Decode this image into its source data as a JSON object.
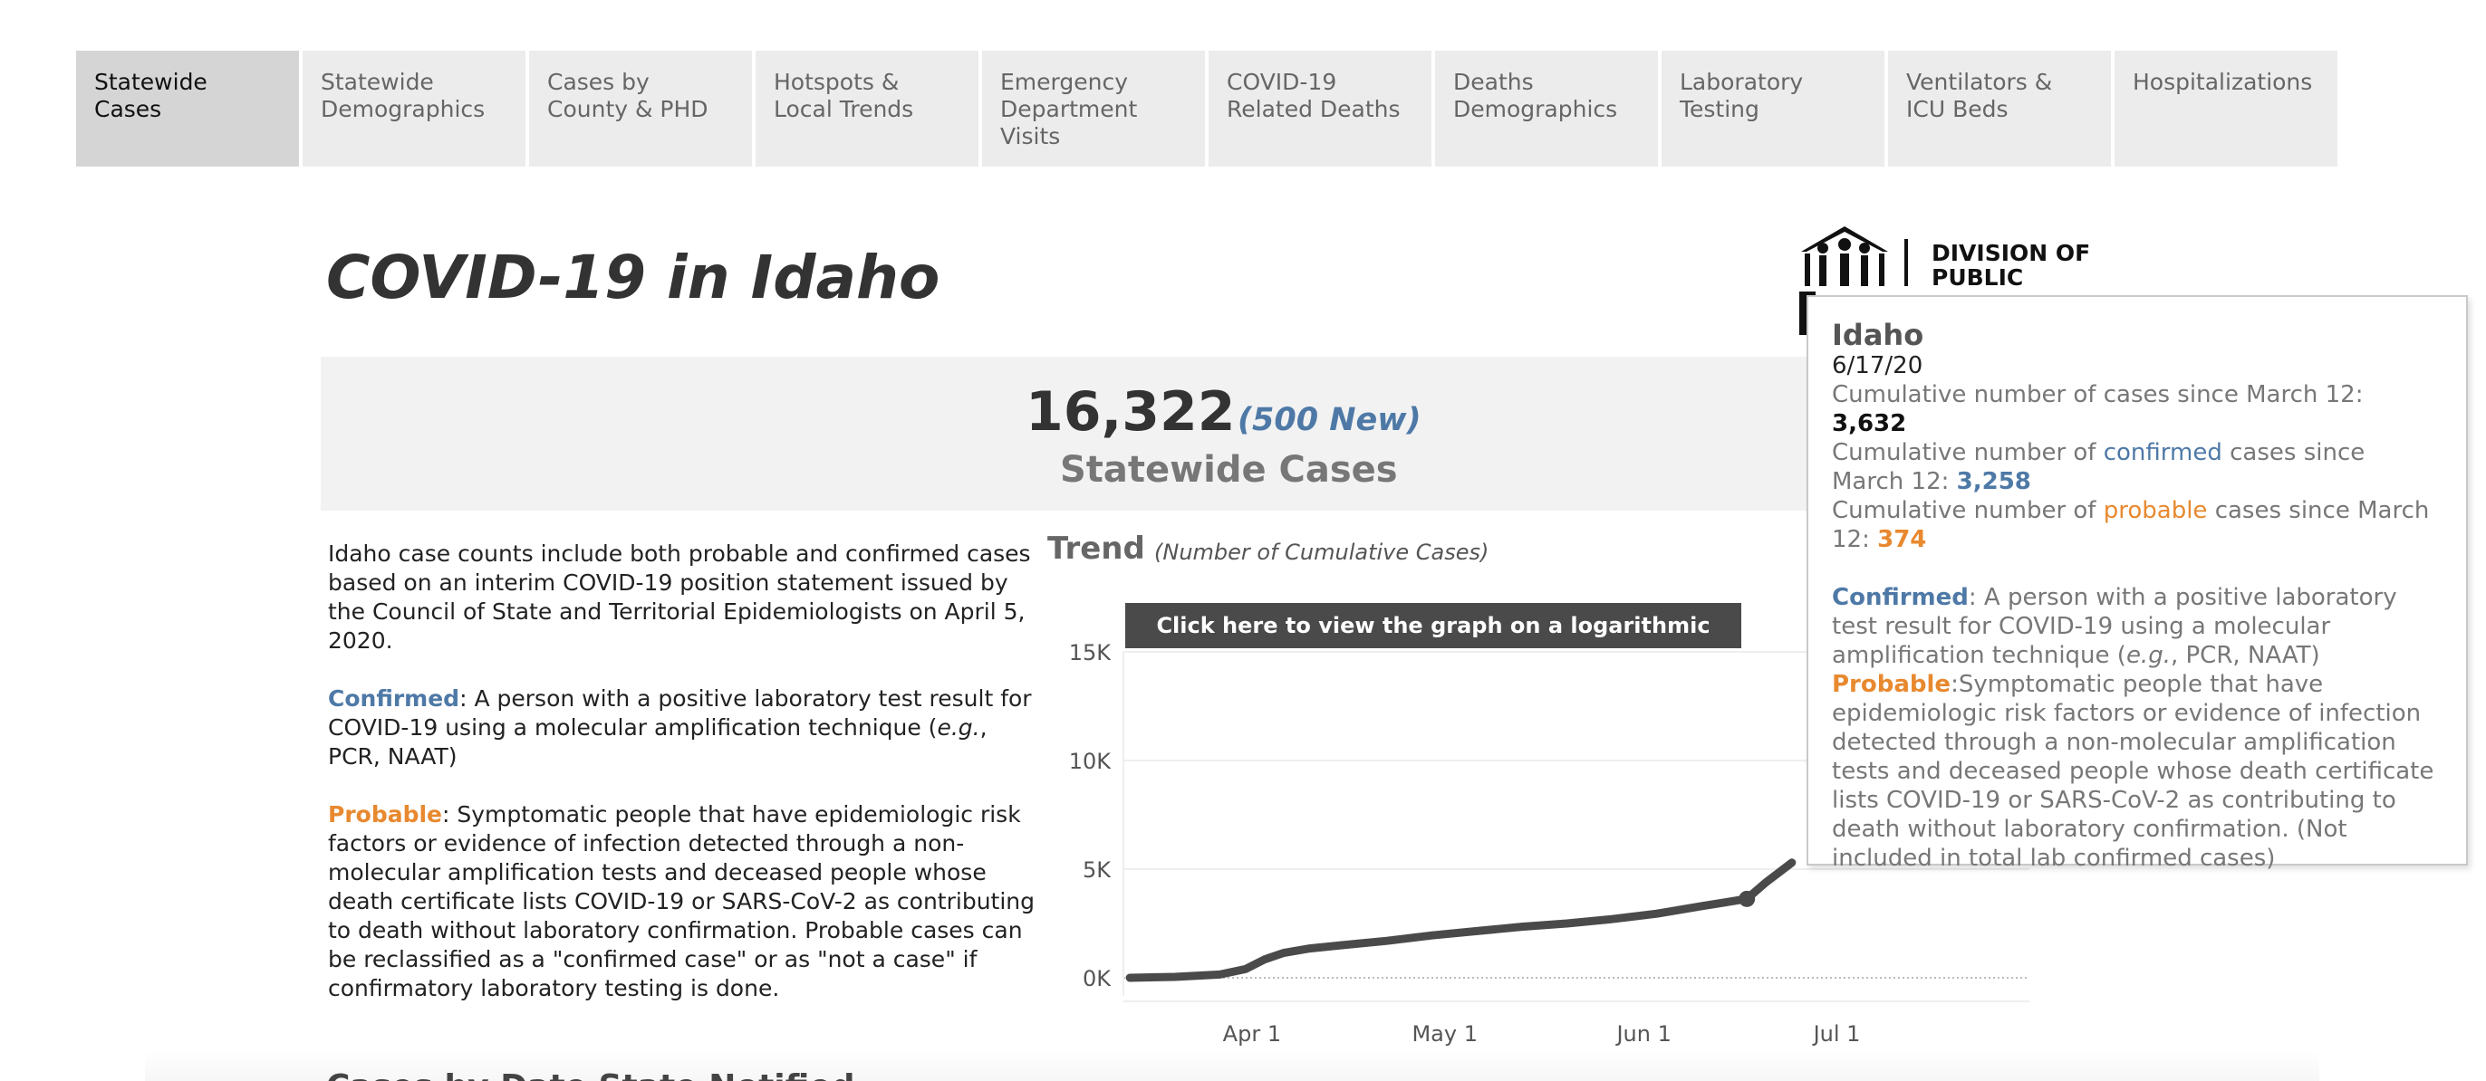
{
  "tabs": [
    {
      "label": "Statewide Cases",
      "active": true
    },
    {
      "label": "Statewide Demographics"
    },
    {
      "label": "Cases by County & PHD"
    },
    {
      "label": "Hotspots & Local Trends"
    },
    {
      "label": "Emergency Department Visits"
    },
    {
      "label": "COVID-19 Related Deaths"
    },
    {
      "label": "Deaths Demographics"
    },
    {
      "label": "Laboratory Testing"
    },
    {
      "label": "Ventilators & ICU Beds"
    },
    {
      "label": "Hospitalizations"
    }
  ],
  "page_title": "COVID-19 in Idaho",
  "logo": {
    "line1": "DIVISION OF",
    "line2": "PUBLIC"
  },
  "headline": {
    "total": "16,322",
    "new": "(500 New)",
    "label": "Statewide Cases"
  },
  "left_text": {
    "intro": "Idaho case counts include both probable and confirmed cases based on an interim COVID-19 position statement issued by the Council of State and Territorial Epidemiologists on April 5, 2020.",
    "confirmed_label": "Confirmed",
    "confirmed_text": ": A person with a positive laboratory test result for COVID-19 using a molecular amplification technique (",
    "confirmed_eg": "e.g.",
    "confirmed_tail": ", PCR, NAAT)",
    "probable_label": "Probable",
    "probable_text": ": Symptomatic people that have epidemiologic risk factors or evidence of infection detected through a non-molecular amplification tests and deceased people whose death certificate lists  COVID-19 or SARS-CoV-2 as contributing to death without laboratory confirmation. Probable cases can be reclassified as a \"confirmed case\" or as \"not a case\" if confirmatory laboratory testing is done."
  },
  "trend": {
    "title": "Trend",
    "subtitle": "(Number of Cumulative Cases)",
    "log_button": "Click here to view the graph on a logarithmic scale"
  },
  "tooltip": {
    "title": "Idaho",
    "date": "6/17/20",
    "line1_prefix": "Cumulative number of cases since March 12: ",
    "line1_value": "3,632",
    "line2_prefix": "Cumulative number of ",
    "line2_word": "confirmed",
    "line2_suffix": " cases since March 12: ",
    "line2_value": "3,258",
    "line3_prefix": "Cumulative number of ",
    "line3_word": "probable",
    "line3_suffix": " cases since March 12: ",
    "line3_value": "374",
    "confirmed_label": "Confirmed",
    "confirmed_text": ": A person with a positive laboratory test result for COVID-19 using a molecular amplification technique (",
    "confirmed_eg": "e.g.",
    "confirmed_tail": ", PCR, NAAT)",
    "probable_label": "Probable",
    "probable_text": ":Symptomatic people that have epidemiologic risk factors or evidence of infection detected through a non-molecular amplification tests and deceased people whose death certificate lists  COVID-19 or SARS-CoV-2 as contributing to death without laboratory confirmation. (Not included in total lab confirmed cases)"
  },
  "footer_heading": "Cases by Date State Notified",
  "colors": {
    "confirmed": "#4e79a7",
    "probable": "#e8892f",
    "line": "#4a4a4a"
  },
  "chart_data": {
    "type": "line",
    "title": "Trend",
    "subtitle": "(Number of Cumulative Cases)",
    "yticks": [
      "0K",
      "5K",
      "10K",
      "15K"
    ],
    "xticks": [
      "Apr 1",
      "May 1",
      "Jun 1",
      "Jul 1"
    ],
    "ylim": [
      0,
      15000
    ],
    "xlim": [
      "2020-03-12",
      "2020-08-07"
    ],
    "grid": true,
    "series": [
      {
        "x": [
          "2020-03-13",
          "2020-03-20",
          "2020-03-27",
          "2020-03-31",
          "2020-04-03",
          "2020-04-06",
          "2020-04-10",
          "2020-04-15",
          "2020-04-22",
          "2020-04-29",
          "2020-05-06",
          "2020-05-13",
          "2020-05-20",
          "2020-05-27",
          "2020-06-03",
          "2020-06-10",
          "2020-06-17",
          "2020-06-20",
          "2020-06-24"
        ],
        "y": [
          2,
          40,
          150,
          400,
          850,
          1150,
          1350,
          1500,
          1700,
          1950,
          2150,
          2350,
          2500,
          2700,
          2950,
          3300,
          3632,
          4400,
          5300
        ]
      }
    ],
    "highlight": {
      "x": "2020-06-17",
      "y": 3632
    }
  }
}
